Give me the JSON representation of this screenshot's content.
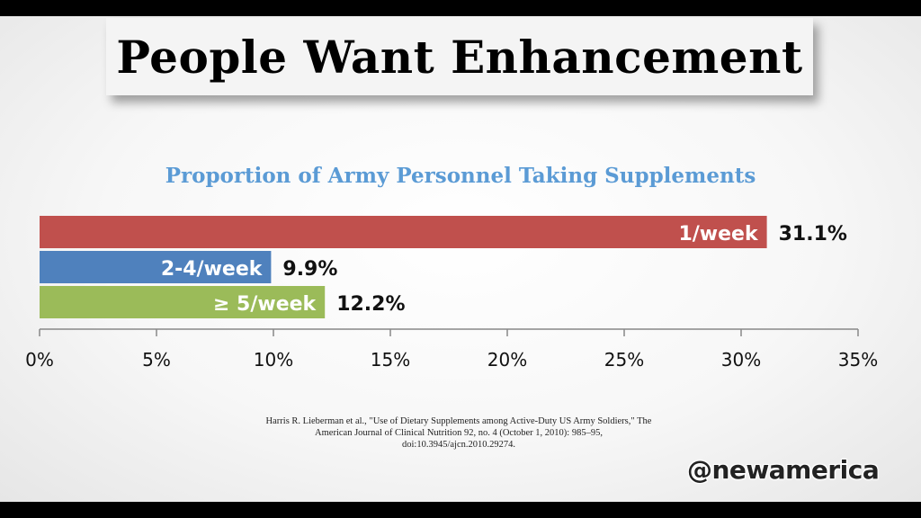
{
  "slide": {
    "title": "People Want Enhancement",
    "source_lines": [
      "Harris R. Lieberman et al., \"Use of Dietary Supplements among Active-Duty US Army Soldiers,\" The",
      "American Journal of Clinical Nutrition 92, no. 4 (October 1, 2010): 985–95,",
      "doi:10.3945/ajcn.2010.29274."
    ],
    "watermark": "@newamerica"
  },
  "chart_data": {
    "type": "bar",
    "orientation": "horizontal",
    "title": "Proportion of Army Personnel Taking Supplements",
    "categories": [
      "1/week",
      "2-4/week",
      "≥ 5/week"
    ],
    "values": [
      31.1,
      9.9,
      12.2
    ],
    "value_labels": [
      "31.1%",
      "9.9%",
      "12.2%"
    ],
    "colors": [
      "#c0504d",
      "#4f81bd",
      "#9bbb59"
    ],
    "xlim": [
      0,
      35
    ],
    "xticks": [
      0,
      5,
      10,
      15,
      20,
      25,
      30,
      35
    ],
    "xtick_labels": [
      "0%",
      "5%",
      "10%",
      "15%",
      "20%",
      "25%",
      "30%",
      "35%"
    ],
    "xlabel": "",
    "ylabel": "",
    "grid": false,
    "legend": "none"
  }
}
